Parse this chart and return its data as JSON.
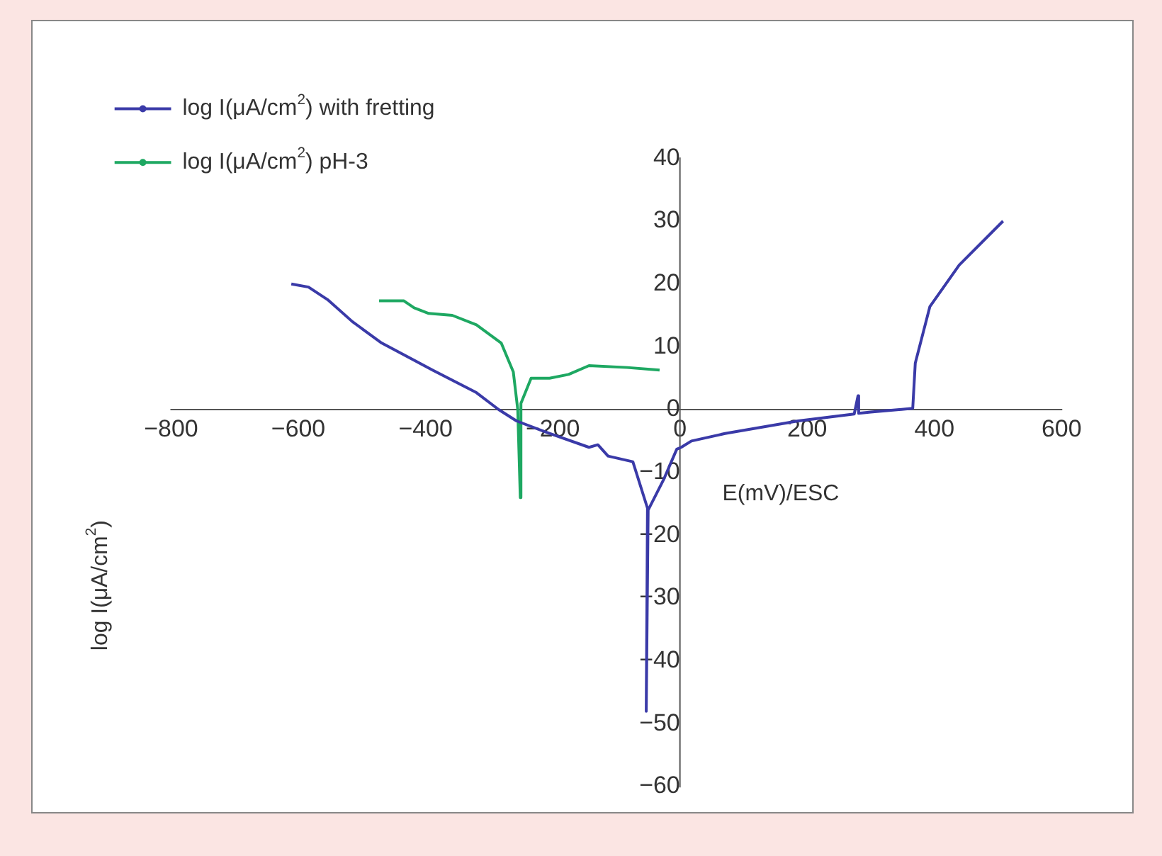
{
  "chart_data": {
    "type": "line",
    "xlabel": "E(mV)/ESC",
    "ylabel": "log I(μA/cm$^{2}$)",
    "xlim": [
      -800,
      600
    ],
    "ylim": [
      -60,
      40
    ],
    "xticks": [
      {
        "value": -800,
        "label": "−800"
      },
      {
        "value": -600,
        "label": "−600"
      },
      {
        "value": -400,
        "label": "−400"
      },
      {
        "value": -200,
        "label": "−200"
      },
      0,
      200,
      400,
      600
    ],
    "yticks": [
      {
        "value": -60,
        "label": "−60"
      },
      {
        "value": -50,
        "label": "−50"
      },
      {
        "value": -40,
        "label": "−40"
      },
      {
        "value": -30,
        "label": "−30"
      },
      {
        "value": -20,
        "label": "−20"
      },
      {
        "value": -10,
        "label": "−10"
      },
      0,
      10,
      20,
      30,
      40
    ],
    "grid": false,
    "legend": "top left",
    "marker": "none",
    "line_style": "solid",
    "series": [
      {
        "name": "log I(μA/cm$^{2}$) with fretting",
        "color": "#3a3aa8",
        "x": [
          -611,
          -584,
          -554,
          -515,
          -469,
          -389,
          -320,
          -285,
          -257,
          -205,
          -143,
          -129,
          -113,
          -74,
          -51,
          -53,
          -50,
          -25,
          -5,
          2,
          18,
          71,
          186,
          274,
          280,
          281,
          300,
          366,
          370,
          393,
          439,
          508
        ],
        "values": [
          20,
          19.5,
          17.5,
          14,
          10.6,
          6.3,
          2.7,
          0,
          -1.8,
          -3.8,
          -6,
          -5.6,
          -7.4,
          -8.3,
          -15.7,
          -48,
          -16,
          -11,
          -6.3,
          -6,
          -5,
          -3.8,
          -1.8,
          -0.7,
          2.2,
          -0.6,
          -0.4,
          0.2,
          7.4,
          16.4,
          23,
          30
        ]
      },
      {
        "name": "log I(μA/cm$^{2}$) pH-3",
        "color": "#1ea862",
        "x": [
          -473,
          -434,
          -418,
          -395,
          -358,
          -320,
          -281,
          -262,
          -255,
          -251,
          -250,
          -234,
          -205,
          -175,
          -143,
          -83,
          -32
        ],
        "values": [
          17.3,
          17.3,
          16.2,
          15.3,
          15,
          13.5,
          10.6,
          6,
          0,
          -14,
          1,
          5,
          5,
          5.6,
          7,
          6.7,
          6.3
        ]
      }
    ]
  }
}
